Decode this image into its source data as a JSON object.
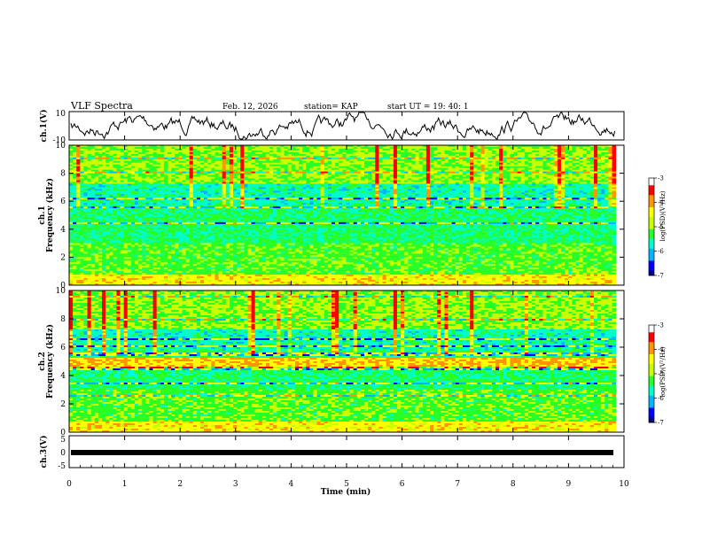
{
  "header": {
    "title": "VLF Spectra",
    "date": "Feb. 12, 2026",
    "station": "station= KAP",
    "start": "start  UT =   19: 40: 1"
  },
  "chart_data": [
    {
      "type": "line",
      "name": "ch1-waveform",
      "ylabel": "ch.1(V)",
      "ylim": [
        -10,
        10
      ],
      "y_ticks": [
        "10",
        "-10"
      ],
      "xlim": [
        0,
        9.85
      ]
    },
    {
      "type": "heatmap",
      "name": "ch1-spectrogram",
      "ylabel_top": "ch.1",
      "ylabel": "Frequency (kHz)",
      "ylim": [
        0,
        10
      ],
      "y_ticks": [
        "0",
        "2",
        "4",
        "6",
        "8",
        "10"
      ],
      "xlim": [
        0,
        9.85
      ],
      "colorbar": {
        "label": "log(PSD)(V²/Hz)",
        "range": [
          -7,
          -3
        ],
        "ticks": [
          "-3",
          "-4",
          "-5",
          "-6",
          "-7"
        ]
      }
    },
    {
      "type": "heatmap",
      "name": "ch2-spectrogram",
      "ylabel_top": "ch.2",
      "ylabel": "Frequency (kHz)",
      "ylim": [
        0,
        10
      ],
      "y_ticks": [
        "0",
        "2",
        "4",
        "6",
        "8",
        "10"
      ],
      "xlim": [
        0,
        9.85
      ],
      "colorbar": {
        "label": "log(PSD)(V²/Hz)",
        "range": [
          -7,
          -3
        ],
        "ticks": [
          "-3",
          "-4",
          "-5",
          "-6",
          "-7"
        ]
      }
    },
    {
      "type": "line",
      "name": "ch3-waveform",
      "ylabel": "ch.3(V)",
      "ylim": [
        -5,
        5
      ],
      "y_ticks": [
        "5",
        "0",
        "-5"
      ],
      "x": [
        0,
        9.85
      ],
      "y": [
        0,
        0
      ],
      "xlim": [
        0,
        10
      ],
      "x_ticks": [
        "0",
        "1",
        "2",
        "3",
        "4",
        "5",
        "6",
        "7",
        "8",
        "9",
        "10"
      ],
      "xlabel": "Time (min)"
    }
  ],
  "colors": {
    "colormap": [
      "#000080",
      "#0000ff",
      "#00b4ff",
      "#00ffc8",
      "#28ff28",
      "#c8ff00",
      "#ffff00",
      "#ff9600",
      "#ff0000",
      "#ffffff"
    ],
    "trace": "#000000"
  }
}
